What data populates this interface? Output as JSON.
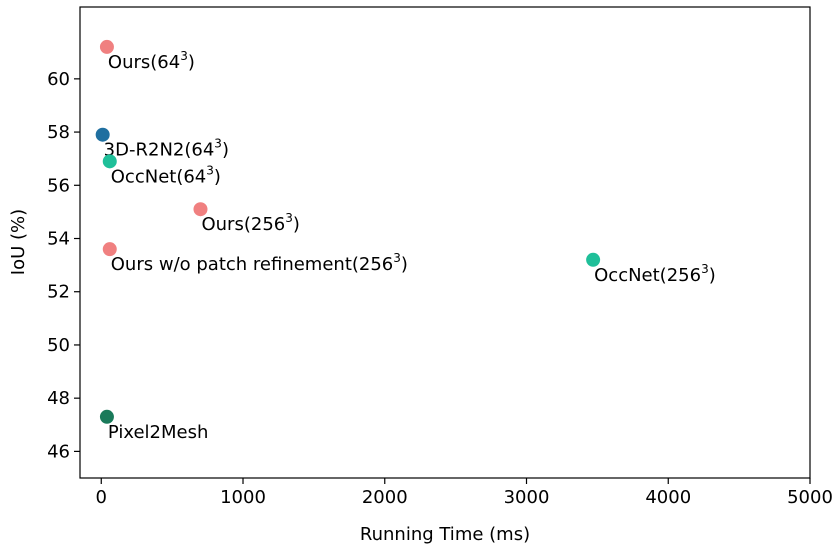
{
  "chart_data": {
    "type": "scatter",
    "xlabel": "Running Time (ms)",
    "ylabel": "IoU (%)",
    "xlim": [
      -150,
      5000
    ],
    "ylim": [
      45,
      62.7
    ],
    "xticks": [
      0,
      1000,
      2000,
      3000,
      4000,
      5000
    ],
    "yticks": [
      46,
      48,
      50,
      52,
      54,
      56,
      58,
      60
    ],
    "grid": false,
    "points": [
      {
        "label": "Ours(64",
        "sup": "3",
        "suffix": ")",
        "x": 40,
        "y": 61.2,
        "color": "#f08080"
      },
      {
        "label": "3D-R2N2(64",
        "sup": "3",
        "suffix": ")",
        "x": 10,
        "y": 57.9,
        "color": "#1f6fa0"
      },
      {
        "label": "OccNet(64",
        "sup": "3",
        "suffix": ")",
        "x": 60,
        "y": 56.9,
        "color": "#1fbf99"
      },
      {
        "label": "Ours(256",
        "sup": "3",
        "suffix": ")",
        "x": 700,
        "y": 55.1,
        "color": "#f08080"
      },
      {
        "label": "Ours w/o patch refinement(256",
        "sup": "3",
        "suffix": ")",
        "x": 60,
        "y": 53.6,
        "color": "#f08080"
      },
      {
        "label": "OccNet(256",
        "sup": "3",
        "suffix": ")",
        "x": 3470,
        "y": 53.2,
        "color": "#1fbf99"
      },
      {
        "label": "Pixel2Mesh",
        "sup": "",
        "suffix": "",
        "x": 40,
        "y": 47.3,
        "color": "#1a7a5a"
      }
    ]
  }
}
